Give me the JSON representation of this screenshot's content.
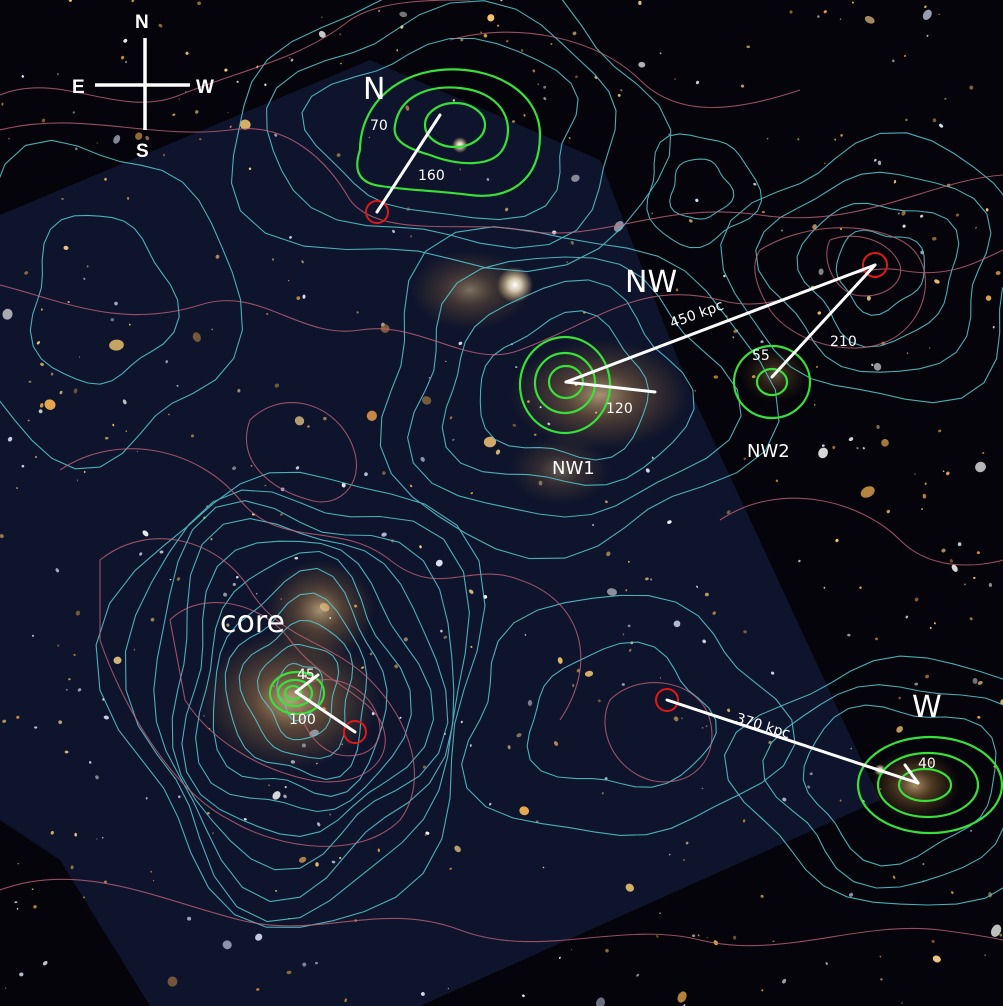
{
  "image": {
    "description_free": true,
    "colors": {
      "background": "#05050c",
      "hst_tile": "#0f1530",
      "lensing_contour": "#57c9d2",
      "xray_contour": "#c7667a",
      "substructure_contour": "#39e03a",
      "peak_marker": "#e01818",
      "separation_line": "#ffffff",
      "galaxy": "#e8b560"
    }
  },
  "compass": {
    "north": "N",
    "south": "S",
    "east": "E",
    "west": "W"
  },
  "regions": {
    "north": {
      "name": "N",
      "offset_small": "70",
      "offset_large": "160"
    },
    "northwest": {
      "name": "NW",
      "separation": "450 kpc",
      "nw1": {
        "name": "NW1",
        "offset": "120"
      },
      "nw2": {
        "name": "NW2",
        "offset_small": "55",
        "offset_large": "210"
      }
    },
    "core": {
      "name": "core",
      "offset_small": "45",
      "offset_large": "100"
    },
    "west": {
      "name": "W",
      "offset": "40",
      "separation": "370 kpc"
    }
  }
}
